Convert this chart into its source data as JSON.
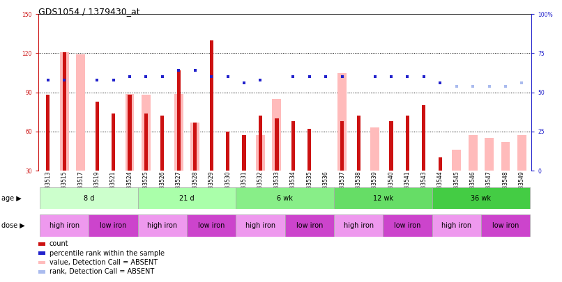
{
  "title": "GDS1054 / 1379430_at",
  "samples": [
    "GSM33513",
    "GSM33515",
    "GSM33517",
    "GSM33519",
    "GSM33521",
    "GSM33524",
    "GSM33525",
    "GSM33526",
    "GSM33527",
    "GSM33528",
    "GSM33529",
    "GSM33530",
    "GSM33531",
    "GSM33532",
    "GSM33533",
    "GSM33534",
    "GSM33535",
    "GSM33536",
    "GSM33537",
    "GSM33538",
    "GSM33539",
    "GSM33540",
    "GSM33541",
    "GSM33543",
    "GSM33544",
    "GSM33545",
    "GSM33546",
    "GSM33547",
    "GSM33548",
    "GSM33549"
  ],
  "count": [
    88,
    121,
    null,
    83,
    74,
    88,
    74,
    72,
    107,
    67,
    130,
    60,
    57,
    72,
    70,
    68,
    62,
    null,
    68,
    72,
    null,
    68,
    72,
    80,
    40,
    null,
    null,
    null,
    null,
    null
  ],
  "value_absent": [
    null,
    121,
    119,
    null,
    null,
    89,
    88,
    null,
    89,
    67,
    null,
    null,
    null,
    57,
    85,
    null,
    null,
    null,
    105,
    null,
    63,
    null,
    null,
    null,
    null,
    46,
    57,
    55,
    52,
    57
  ],
  "rank_present": [
    58,
    58,
    null,
    58,
    58,
    60,
    60,
    60,
    64,
    64,
    60,
    60,
    56,
    58,
    null,
    60,
    60,
    60,
    60,
    null,
    60,
    60,
    60,
    60,
    56,
    null,
    null,
    null,
    null,
    null
  ],
  "rank_absent": [
    null,
    null,
    null,
    null,
    null,
    null,
    null,
    null,
    null,
    null,
    null,
    null,
    null,
    null,
    null,
    null,
    null,
    null,
    null,
    null,
    null,
    null,
    null,
    null,
    null,
    54,
    54,
    54,
    54,
    56
  ],
  "age_groups": [
    {
      "label": "8 d",
      "start": 0,
      "end": 6
    },
    {
      "label": "21 d",
      "start": 6,
      "end": 12
    },
    {
      "label": "6 wk",
      "start": 12,
      "end": 18
    },
    {
      "label": "12 wk",
      "start": 18,
      "end": 24
    },
    {
      "label": "36 wk",
      "start": 24,
      "end": 30
    }
  ],
  "age_colors": [
    "#ccffcc",
    "#aaffaa",
    "#88ee88",
    "#66dd66",
    "#44cc44"
  ],
  "dose_groups": [
    {
      "label": "high iron",
      "start": 0,
      "end": 3
    },
    {
      "label": "low iron",
      "start": 3,
      "end": 6
    },
    {
      "label": "high iron",
      "start": 6,
      "end": 9
    },
    {
      "label": "low iron",
      "start": 9,
      "end": 12
    },
    {
      "label": "high iron",
      "start": 12,
      "end": 15
    },
    {
      "label": "low iron",
      "start": 15,
      "end": 18
    },
    {
      "label": "high iron",
      "start": 18,
      "end": 21
    },
    {
      "label": "low iron",
      "start": 21,
      "end": 24
    },
    {
      "label": "high iron",
      "start": 24,
      "end": 27
    },
    {
      "label": "low iron",
      "start": 27,
      "end": 30
    }
  ],
  "color_high_iron": "#ee99ee",
  "color_low_iron": "#cc44cc",
  "ylim_left": [
    30,
    150
  ],
  "ylim_right": [
    0,
    100
  ],
  "yticks_left": [
    30,
    60,
    90,
    120,
    150
  ],
  "yticks_right": [
    0,
    25,
    50,
    75,
    100
  ],
  "ytick_labels_right": [
    "0",
    "25",
    "50",
    "75",
    "100%"
  ],
  "color_count": "#cc1111",
  "color_value_absent": "#ffbbbb",
  "color_rank_present": "#2222cc",
  "color_rank_absent": "#aabbee",
  "dotted_lines": [
    60,
    90,
    120
  ],
  "title_fontsize": 9,
  "tick_fontsize": 5.5,
  "label_fontsize": 7,
  "legend_fontsize": 7,
  "bw_wide": 0.55,
  "bw_narrow": 0.22
}
